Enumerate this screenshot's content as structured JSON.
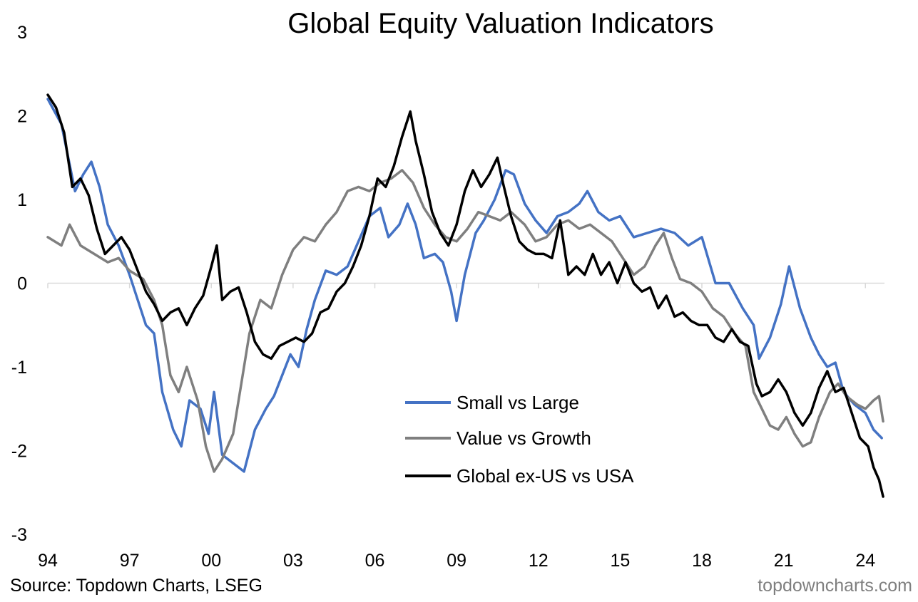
{
  "chart_data": {
    "type": "line",
    "title": "Global Equity Valuation Indicators",
    "xlabel": "",
    "ylabel": "",
    "xlim": [
      1994.0,
      2024.7
    ],
    "ylim": [
      -3,
      3
    ],
    "y_ticks": [
      "3",
      "2",
      "1",
      "0",
      "-1",
      "-2",
      "-3"
    ],
    "x_ticks": [
      {
        "label": "94",
        "year": 1994
      },
      {
        "label": "97",
        "year": 1997
      },
      {
        "label": "00",
        "year": 2000
      },
      {
        "label": "03",
        "year": 2003
      },
      {
        "label": "06",
        "year": 2006
      },
      {
        "label": "09",
        "year": 2009
      },
      {
        "label": "12",
        "year": 2012
      },
      {
        "label": "15",
        "year": 2015
      },
      {
        "label": "18",
        "year": 2018
      },
      {
        "label": "21",
        "year": 2021
      },
      {
        "label": "24",
        "year": 2024
      }
    ],
    "legend_position": "bottom-center",
    "series": [
      {
        "name": "Small vs Large",
        "color": "#4472c4",
        "points": [
          [
            1994.0,
            2.2
          ],
          [
            1994.5,
            1.9
          ],
          [
            1995.0,
            1.1
          ],
          [
            1995.3,
            1.3
          ],
          [
            1995.6,
            1.45
          ],
          [
            1995.9,
            1.15
          ],
          [
            1996.2,
            0.7
          ],
          [
            1996.6,
            0.45
          ],
          [
            1997.0,
            0.1
          ],
          [
            1997.3,
            -0.2
          ],
          [
            1997.6,
            -0.5
          ],
          [
            1997.9,
            -0.6
          ],
          [
            1998.2,
            -1.3
          ],
          [
            1998.6,
            -1.75
          ],
          [
            1998.9,
            -1.95
          ],
          [
            1999.2,
            -1.4
          ],
          [
            1999.6,
            -1.5
          ],
          [
            1999.9,
            -1.8
          ],
          [
            2000.1,
            -1.3
          ],
          [
            2000.4,
            -2.05
          ],
          [
            2000.8,
            -2.15
          ],
          [
            2001.2,
            -2.25
          ],
          [
            2001.6,
            -1.75
          ],
          [
            2002.0,
            -1.5
          ],
          [
            2002.3,
            -1.35
          ],
          [
            2002.6,
            -1.1
          ],
          [
            2002.9,
            -0.85
          ],
          [
            2003.2,
            -1.0
          ],
          [
            2003.5,
            -0.55
          ],
          [
            2003.8,
            -0.2
          ],
          [
            2004.2,
            0.15
          ],
          [
            2004.6,
            0.1
          ],
          [
            2005.0,
            0.2
          ],
          [
            2005.4,
            0.5
          ],
          [
            2005.8,
            0.8
          ],
          [
            2006.2,
            0.9
          ],
          [
            2006.5,
            0.55
          ],
          [
            2006.9,
            0.7
          ],
          [
            2007.2,
            0.95
          ],
          [
            2007.5,
            0.7
          ],
          [
            2007.8,
            0.3
          ],
          [
            2008.2,
            0.35
          ],
          [
            2008.5,
            0.25
          ],
          [
            2008.8,
            -0.1
          ],
          [
            2009.0,
            -0.45
          ],
          [
            2009.3,
            0.1
          ],
          [
            2009.7,
            0.6
          ],
          [
            2010.0,
            0.75
          ],
          [
            2010.4,
            1.0
          ],
          [
            2010.8,
            1.35
          ],
          [
            2011.1,
            1.3
          ],
          [
            2011.5,
            0.95
          ],
          [
            2011.9,
            0.75
          ],
          [
            2012.3,
            0.6
          ],
          [
            2012.7,
            0.8
          ],
          [
            2013.1,
            0.85
          ],
          [
            2013.5,
            0.95
          ],
          [
            2013.8,
            1.1
          ],
          [
            2014.2,
            0.85
          ],
          [
            2014.6,
            0.75
          ],
          [
            2015.0,
            0.8
          ],
          [
            2015.5,
            0.55
          ],
          [
            2016.0,
            0.6
          ],
          [
            2016.5,
            0.65
          ],
          [
            2017.0,
            0.6
          ],
          [
            2017.5,
            0.45
          ],
          [
            2018.0,
            0.55
          ],
          [
            2018.5,
            0.0
          ],
          [
            2019.0,
            0.0
          ],
          [
            2019.5,
            -0.3
          ],
          [
            2019.9,
            -0.5
          ],
          [
            2020.1,
            -0.9
          ],
          [
            2020.5,
            -0.65
          ],
          [
            2020.9,
            -0.25
          ],
          [
            2021.2,
            0.2
          ],
          [
            2021.6,
            -0.3
          ],
          [
            2022.0,
            -0.65
          ],
          [
            2022.3,
            -0.85
          ],
          [
            2022.6,
            -1.0
          ],
          [
            2022.9,
            -0.95
          ],
          [
            2023.2,
            -1.3
          ],
          [
            2023.6,
            -1.45
          ],
          [
            2024.0,
            -1.55
          ],
          [
            2024.3,
            -1.75
          ],
          [
            2024.6,
            -1.85
          ]
        ]
      },
      {
        "name": "Value vs Growth",
        "color": "#7f7f7f",
        "points": [
          [
            1994.0,
            0.55
          ],
          [
            1994.5,
            0.45
          ],
          [
            1994.8,
            0.7
          ],
          [
            1995.2,
            0.45
          ],
          [
            1995.7,
            0.35
          ],
          [
            1996.2,
            0.25
          ],
          [
            1996.6,
            0.3
          ],
          [
            1997.0,
            0.15
          ],
          [
            1997.5,
            0.05
          ],
          [
            1997.9,
            -0.2
          ],
          [
            1998.2,
            -0.5
          ],
          [
            1998.5,
            -1.1
          ],
          [
            1998.8,
            -1.3
          ],
          [
            1999.1,
            -1.0
          ],
          [
            1999.5,
            -1.4
          ],
          [
            1999.8,
            -1.95
          ],
          [
            2000.1,
            -2.25
          ],
          [
            2000.4,
            -2.1
          ],
          [
            2000.8,
            -1.8
          ],
          [
            2001.1,
            -1.2
          ],
          [
            2001.4,
            -0.6
          ],
          [
            2001.8,
            -0.2
          ],
          [
            2002.2,
            -0.3
          ],
          [
            2002.6,
            0.1
          ],
          [
            2003.0,
            0.4
          ],
          [
            2003.4,
            0.55
          ],
          [
            2003.8,
            0.5
          ],
          [
            2004.2,
            0.7
          ],
          [
            2004.6,
            0.85
          ],
          [
            2005.0,
            1.1
          ],
          [
            2005.4,
            1.15
          ],
          [
            2005.8,
            1.1
          ],
          [
            2006.2,
            1.2
          ],
          [
            2006.6,
            1.25
          ],
          [
            2007.0,
            1.35
          ],
          [
            2007.4,
            1.2
          ],
          [
            2007.8,
            0.9
          ],
          [
            2008.2,
            0.7
          ],
          [
            2008.6,
            0.55
          ],
          [
            2009.0,
            0.5
          ],
          [
            2009.4,
            0.65
          ],
          [
            2009.8,
            0.85
          ],
          [
            2010.2,
            0.8
          ],
          [
            2010.6,
            0.75
          ],
          [
            2011.0,
            0.85
          ],
          [
            2011.5,
            0.7
          ],
          [
            2011.9,
            0.5
          ],
          [
            2012.3,
            0.55
          ],
          [
            2012.7,
            0.7
          ],
          [
            2013.1,
            0.75
          ],
          [
            2013.5,
            0.65
          ],
          [
            2013.9,
            0.7
          ],
          [
            2014.3,
            0.6
          ],
          [
            2014.7,
            0.5
          ],
          [
            2015.1,
            0.3
          ],
          [
            2015.5,
            0.1
          ],
          [
            2015.9,
            0.2
          ],
          [
            2016.3,
            0.45
          ],
          [
            2016.6,
            0.6
          ],
          [
            2016.9,
            0.3
          ],
          [
            2017.2,
            0.05
          ],
          [
            2017.6,
            0.0
          ],
          [
            2018.0,
            -0.1
          ],
          [
            2018.4,
            -0.3
          ],
          [
            2018.8,
            -0.4
          ],
          [
            2019.2,
            -0.6
          ],
          [
            2019.6,
            -0.75
          ],
          [
            2019.9,
            -1.3
          ],
          [
            2020.2,
            -1.5
          ],
          [
            2020.5,
            -1.7
          ],
          [
            2020.8,
            -1.75
          ],
          [
            2021.1,
            -1.6
          ],
          [
            2021.4,
            -1.8
          ],
          [
            2021.7,
            -1.95
          ],
          [
            2022.0,
            -1.9
          ],
          [
            2022.3,
            -1.6
          ],
          [
            2022.7,
            -1.3
          ],
          [
            2023.0,
            -1.2
          ],
          [
            2023.3,
            -1.35
          ],
          [
            2023.7,
            -1.45
          ],
          [
            2024.0,
            -1.5
          ],
          [
            2024.3,
            -1.4
          ],
          [
            2024.5,
            -1.35
          ],
          [
            2024.65,
            -1.65
          ]
        ]
      },
      {
        "name": "Global ex-US vs USA",
        "color": "#000000",
        "points": [
          [
            1994.0,
            2.25
          ],
          [
            1994.3,
            2.1
          ],
          [
            1994.6,
            1.8
          ],
          [
            1994.9,
            1.15
          ],
          [
            1995.2,
            1.25
          ],
          [
            1995.5,
            1.05
          ],
          [
            1995.8,
            0.65
          ],
          [
            1996.1,
            0.35
          ],
          [
            1996.4,
            0.45
          ],
          [
            1996.7,
            0.55
          ],
          [
            1997.0,
            0.4
          ],
          [
            1997.3,
            0.15
          ],
          [
            1997.6,
            -0.1
          ],
          [
            1997.9,
            -0.25
          ],
          [
            1998.2,
            -0.45
          ],
          [
            1998.5,
            -0.35
          ],
          [
            1998.8,
            -0.3
          ],
          [
            1999.1,
            -0.5
          ],
          [
            1999.4,
            -0.3
          ],
          [
            1999.7,
            -0.15
          ],
          [
            2000.0,
            0.2
          ],
          [
            2000.2,
            0.45
          ],
          [
            2000.4,
            -0.2
          ],
          [
            2000.7,
            -0.1
          ],
          [
            2001.0,
            -0.05
          ],
          [
            2001.3,
            -0.35
          ],
          [
            2001.6,
            -0.7
          ],
          [
            2001.9,
            -0.85
          ],
          [
            2002.2,
            -0.9
          ],
          [
            2002.5,
            -0.75
          ],
          [
            2002.8,
            -0.7
          ],
          [
            2003.1,
            -0.65
          ],
          [
            2003.4,
            -0.7
          ],
          [
            2003.7,
            -0.6
          ],
          [
            2004.0,
            -0.35
          ],
          [
            2004.3,
            -0.3
          ],
          [
            2004.6,
            -0.1
          ],
          [
            2004.9,
            0.0
          ],
          [
            2005.2,
            0.2
          ],
          [
            2005.5,
            0.45
          ],
          [
            2005.8,
            0.8
          ],
          [
            2006.1,
            1.25
          ],
          [
            2006.4,
            1.15
          ],
          [
            2006.7,
            1.4
          ],
          [
            2007.0,
            1.75
          ],
          [
            2007.3,
            2.05
          ],
          [
            2007.5,
            1.7
          ],
          [
            2007.8,
            1.3
          ],
          [
            2008.1,
            0.85
          ],
          [
            2008.4,
            0.6
          ],
          [
            2008.7,
            0.45
          ],
          [
            2009.0,
            0.7
          ],
          [
            2009.3,
            1.1
          ],
          [
            2009.6,
            1.35
          ],
          [
            2009.9,
            1.15
          ],
          [
            2010.2,
            1.3
          ],
          [
            2010.5,
            1.5
          ],
          [
            2010.7,
            1.2
          ],
          [
            2011.0,
            0.8
          ],
          [
            2011.3,
            0.5
          ],
          [
            2011.6,
            0.4
          ],
          [
            2011.9,
            0.35
          ],
          [
            2012.2,
            0.35
          ],
          [
            2012.5,
            0.3
          ],
          [
            2012.8,
            0.75
          ],
          [
            2013.1,
            0.1
          ],
          [
            2013.4,
            0.2
          ],
          [
            2013.7,
            0.1
          ],
          [
            2014.0,
            0.35
          ],
          [
            2014.3,
            0.1
          ],
          [
            2014.6,
            0.25
          ],
          [
            2014.9,
            0.0
          ],
          [
            2015.2,
            0.25
          ],
          [
            2015.5,
            0.0
          ],
          [
            2015.8,
            -0.1
          ],
          [
            2016.1,
            -0.05
          ],
          [
            2016.4,
            -0.3
          ],
          [
            2016.7,
            -0.15
          ],
          [
            2017.0,
            -0.4
          ],
          [
            2017.3,
            -0.35
          ],
          [
            2017.6,
            -0.45
          ],
          [
            2017.9,
            -0.5
          ],
          [
            2018.2,
            -0.5
          ],
          [
            2018.5,
            -0.65
          ],
          [
            2018.8,
            -0.7
          ],
          [
            2019.1,
            -0.55
          ],
          [
            2019.4,
            -0.7
          ],
          [
            2019.7,
            -0.75
          ],
          [
            2020.0,
            -1.2
          ],
          [
            2020.2,
            -1.35
          ],
          [
            2020.5,
            -1.3
          ],
          [
            2020.8,
            -1.15
          ],
          [
            2021.1,
            -1.3
          ],
          [
            2021.4,
            -1.55
          ],
          [
            2021.7,
            -1.7
          ],
          [
            2022.0,
            -1.55
          ],
          [
            2022.3,
            -1.25
          ],
          [
            2022.6,
            -1.05
          ],
          [
            2022.9,
            -1.3
          ],
          [
            2023.2,
            -1.25
          ],
          [
            2023.5,
            -1.55
          ],
          [
            2023.8,
            -1.85
          ],
          [
            2024.1,
            -1.95
          ],
          [
            2024.3,
            -2.2
          ],
          [
            2024.5,
            -2.35
          ],
          [
            2024.65,
            -2.55
          ]
        ]
      }
    ]
  },
  "footer": {
    "source": "Source: Topdown Charts, LSEG",
    "watermark": "topdowncharts.com"
  }
}
